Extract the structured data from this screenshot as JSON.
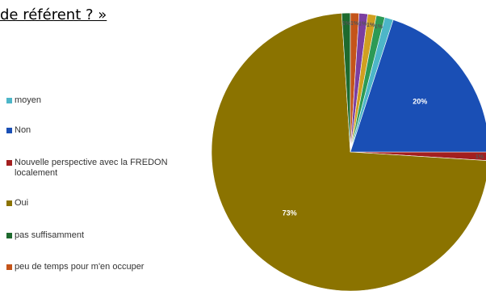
{
  "heading": "de référent ? »",
  "chart_data": {
    "type": "pie",
    "slices": [
      {
        "label": "moyen",
        "value": 1,
        "color": "#4db6c8",
        "data_label": ""
      },
      {
        "label": "Non",
        "value": 20,
        "color": "#1a4fb5",
        "data_label": "20%"
      },
      {
        "label": "Nouvelle perspective avec la FREDON localement",
        "value": 1,
        "color": "#a31f1f",
        "data_label": "1%"
      },
      {
        "label": "Oui",
        "value": 73,
        "color": "#8b7300",
        "data_label": "73%"
      },
      {
        "label": "pas suffisamment",
        "value": 1,
        "color": "#1e6a2e",
        "data_label": "1%"
      },
      {
        "label": "peu de temps pour m'en occuper",
        "value": 1,
        "color": "#c4541a",
        "data_label": "1%"
      },
      {
        "label": "",
        "value": 1,
        "color": "#7b3fa0",
        "data_label": "1%"
      },
      {
        "label": "",
        "value": 1,
        "color": "#d0a020",
        "data_label": "1%"
      },
      {
        "label": "",
        "value": 1,
        "color": "#2c9a55",
        "data_label": "1%"
      }
    ],
    "legend_position": "left"
  },
  "legend": [
    {
      "label": "moyen",
      "color": "#4db6c8"
    },
    {
      "label": "Non",
      "color": "#1a4fb5"
    },
    {
      "label": "Nouvelle perspective avec la FREDON localement",
      "color": "#a31f1f"
    },
    {
      "label": "Oui",
      "color": "#8b7300"
    },
    {
      "label": "pas suffisamment",
      "color": "#1e6a2e"
    },
    {
      "label": "peu de temps pour m'en occuper",
      "color": "#c4541a"
    }
  ]
}
